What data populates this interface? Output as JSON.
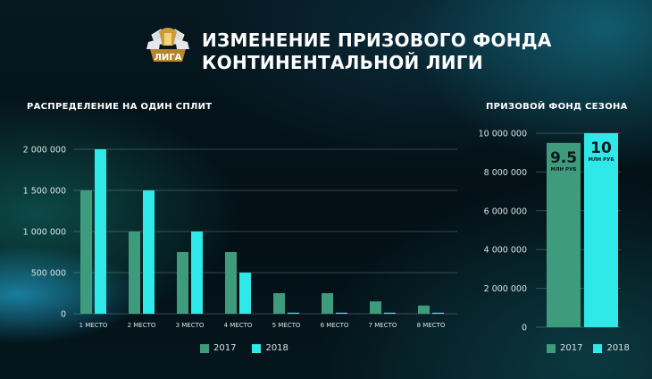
{
  "title_lines": [
    "ИЗМЕНЕНИЕ ПРИЗОВОГО ФОНДА",
    "КОНТИНЕНТАЛЬНОЙ ЛИГИ"
  ],
  "logo": {
    "icon": "league-trophy-emblem",
    "text": "ЛИГА"
  },
  "colors": {
    "2017": "#3e9b7b",
    "2018": "#2fe8e8"
  },
  "chart_data": [
    {
      "type": "bar",
      "title": "РАСПРЕДЕЛЕНИЕ НА ОДИН СПЛИТ",
      "categories": [
        "1 МЕСТО",
        "2 МЕСТО",
        "3 МЕСТО",
        "4 МЕСТО",
        "5 МЕСТО",
        "6 МЕСТО",
        "7 МЕСТО",
        "8 МЕСТО"
      ],
      "series": [
        {
          "name": "2017",
          "values": [
            1500000,
            1000000,
            750000,
            750000,
            250000,
            250000,
            150000,
            100000
          ]
        },
        {
          "name": "2018",
          "values": [
            2000000,
            1500000,
            1000000,
            500000,
            10000,
            10000,
            10000,
            10000
          ]
        }
      ],
      "ylim": [
        0,
        2000000
      ],
      "yticks": [
        "0",
        "500 000",
        "1 000 000",
        "1 500 000",
        "2 000 000"
      ],
      "grid": true,
      "legend": "bottom-center"
    },
    {
      "type": "bar",
      "title": "ПРИЗОВОЙ ФОНД СЕЗОНА",
      "categories": [
        "2017",
        "2018"
      ],
      "series": [
        {
          "name": "Призовой фонд",
          "values": [
            9500000,
            10000000
          ]
        }
      ],
      "labels": [
        {
          "value": "9.5",
          "unit": "МЛН РУБ"
        },
        {
          "value": "10",
          "unit": "МЛН РУБ"
        }
      ],
      "ylim": [
        0,
        10000000
      ],
      "yticks": [
        "0",
        "2 000 000",
        "4 000 000",
        "6 000 000",
        "8 000 000",
        "10 000 000"
      ],
      "grid": true,
      "legend": "bottom-center"
    }
  ]
}
